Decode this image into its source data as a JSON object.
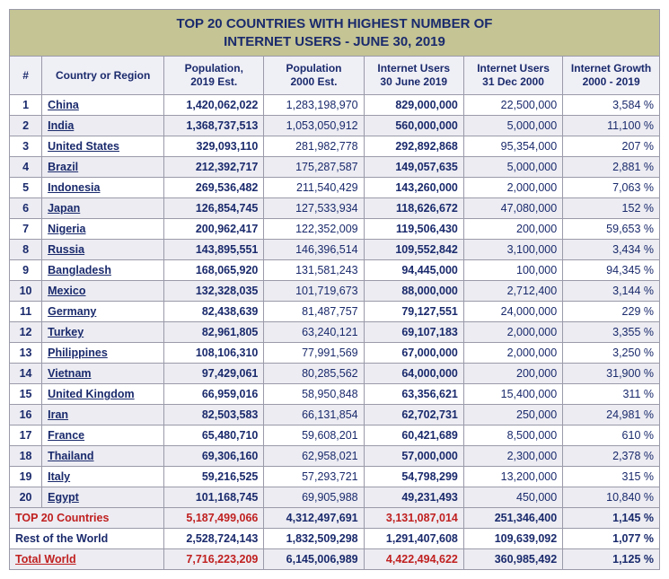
{
  "title_line1": "TOP 20 COUNTRIES WITH HIGHEST NUMBER OF",
  "title_line2": "INTERNET USERS - JUNE 30, 2019",
  "columns": [
    "#",
    "Country or Region",
    "Population,\n2019 Est.",
    "Population\n2000 Est.",
    "Internet Users\n30 June 2019",
    "Internet Users\n31 Dec 2000",
    "Internet Growth\n2000 - 2019"
  ],
  "rows": [
    {
      "rank": "1",
      "country": "China",
      "pop2019": "1,420,062,022",
      "pop2000": "1,283,198,970",
      "users2019": "829,000,000",
      "users2000": "22,500,000",
      "growth": "3,584 %"
    },
    {
      "rank": "2",
      "country": "India",
      "pop2019": "1,368,737,513",
      "pop2000": "1,053,050,912",
      "users2019": "560,000,000",
      "users2000": "5,000,000",
      "growth": "11,100 %"
    },
    {
      "rank": "3",
      "country": "United States",
      "pop2019": "329,093,110",
      "pop2000": "281,982,778",
      "users2019": "292,892,868",
      "users2000": "95,354,000",
      "growth": "207 %"
    },
    {
      "rank": "4",
      "country": "Brazil",
      "pop2019": "212,392,717",
      "pop2000": "175,287,587",
      "users2019": "149,057,635",
      "users2000": "5,000,000",
      "growth": "2,881 %"
    },
    {
      "rank": "5",
      "country": "Indonesia",
      "pop2019": "269,536,482",
      "pop2000": "211,540,429",
      "users2019": "143,260,000",
      "users2000": "2,000,000",
      "growth": "7,063 %"
    },
    {
      "rank": "6",
      "country": "Japan",
      "pop2019": "126,854,745",
      "pop2000": "127,533,934",
      "users2019": "118,626,672",
      "users2000": "47,080,000",
      "growth": "152 %"
    },
    {
      "rank": "7",
      "country": "Nigeria",
      "pop2019": "200,962,417",
      "pop2000": "122,352,009",
      "users2019": "119,506,430",
      "users2000": "200,000",
      "growth": "59,653 %"
    },
    {
      "rank": "8",
      "country": "Russia",
      "pop2019": "143,895,551",
      "pop2000": "146,396,514",
      "users2019": "109,552,842",
      "users2000": "3,100,000",
      "growth": "3,434 %"
    },
    {
      "rank": "9",
      "country": "Bangladesh",
      "pop2019": "168,065,920",
      "pop2000": "131,581,243",
      "users2019": "94,445,000",
      "users2000": "100,000",
      "growth": "94,345 %"
    },
    {
      "rank": "10",
      "country": "Mexico",
      "pop2019": "132,328,035",
      "pop2000": "101,719,673",
      "users2019": "88,000,000",
      "users2000": "2,712,400",
      "growth": "3,144 %"
    },
    {
      "rank": "11",
      "country": "Germany",
      "pop2019": "82,438,639",
      "pop2000": "81,487,757",
      "users2019": "79,127,551",
      "users2000": "24,000,000",
      "growth": "229 %"
    },
    {
      "rank": "12",
      "country": "Turkey",
      "pop2019": "82,961,805",
      "pop2000": "63,240,121",
      "users2019": "69,107,183",
      "users2000": "2,000,000",
      "growth": "3,355 %"
    },
    {
      "rank": "13",
      "country": "Philippines",
      "pop2019": "108,106,310",
      "pop2000": "77,991,569",
      "users2019": "67,000,000",
      "users2000": "2,000,000",
      "growth": "3,250 %"
    },
    {
      "rank": "14",
      "country": "Vietnam",
      "pop2019": "97,429,061",
      "pop2000": "80,285,562",
      "users2019": "64,000,000",
      "users2000": "200,000",
      "growth": "31,900 %"
    },
    {
      "rank": "15",
      "country": "United Kingdom",
      "pop2019": "66,959,016",
      "pop2000": "58,950,848",
      "users2019": "63,356,621",
      "users2000": "15,400,000",
      "growth": "311 %"
    },
    {
      "rank": "16",
      "country": "Iran",
      "pop2019": "82,503,583",
      "pop2000": "66,131,854",
      "users2019": "62,702,731",
      "users2000": "250,000",
      "growth": "24,981 %"
    },
    {
      "rank": "17",
      "country": "France",
      "pop2019": "65,480,710",
      "pop2000": "59,608,201",
      "users2019": "60,421,689",
      "users2000": "8,500,000",
      "growth": "610 %"
    },
    {
      "rank": "18",
      "country": "Thailand",
      "pop2019": "69,306,160",
      "pop2000": "62,958,021",
      "users2019": "57,000,000",
      "users2000": "2,300,000",
      "growth": "2,378 %"
    },
    {
      "rank": "19",
      "country": "Italy",
      "pop2019": "59,216,525",
      "pop2000": "57,293,721",
      "users2019": "54,798,299",
      "users2000": "13,200,000",
      "growth": "315 %"
    },
    {
      "rank": "20",
      "country": "Egypt",
      "pop2019": "101,168,745",
      "pop2000": "69,905,988",
      "users2019": "49,231,493",
      "users2000": "450,000",
      "growth": "10,840 %"
    }
  ],
  "summary": [
    {
      "cls": "top20",
      "label": "TOP 20 Countries",
      "pop2019": "5,187,499,066",
      "pop2000": "4,312,497,691",
      "users2019": "3,131,087,014",
      "users2000": "251,346,400",
      "growth": "1,145 %"
    },
    {
      "cls": "rest",
      "label": "Rest of the World",
      "pop2019": "2,528,724,143",
      "pop2000": "1,832,509,298",
      "users2019": "1,291,407,608",
      "users2000": "109,639,092",
      "growth": "1,077 %"
    },
    {
      "cls": "world",
      "label": "Total World",
      "pop2019": "7,716,223,209",
      "pop2000": "6,145,006,989",
      "users2019": "4,422,494,622",
      "users2000": "360,985,492",
      "growth": "1,125 %"
    }
  ],
  "colors": {
    "title_bg": "#c4c494",
    "header_bg": "#efeff6",
    "alt_row_bg": "#ececf2",
    "text": "#1a2a6c",
    "highlight": "#c02020",
    "border": "#9a9aaa"
  }
}
